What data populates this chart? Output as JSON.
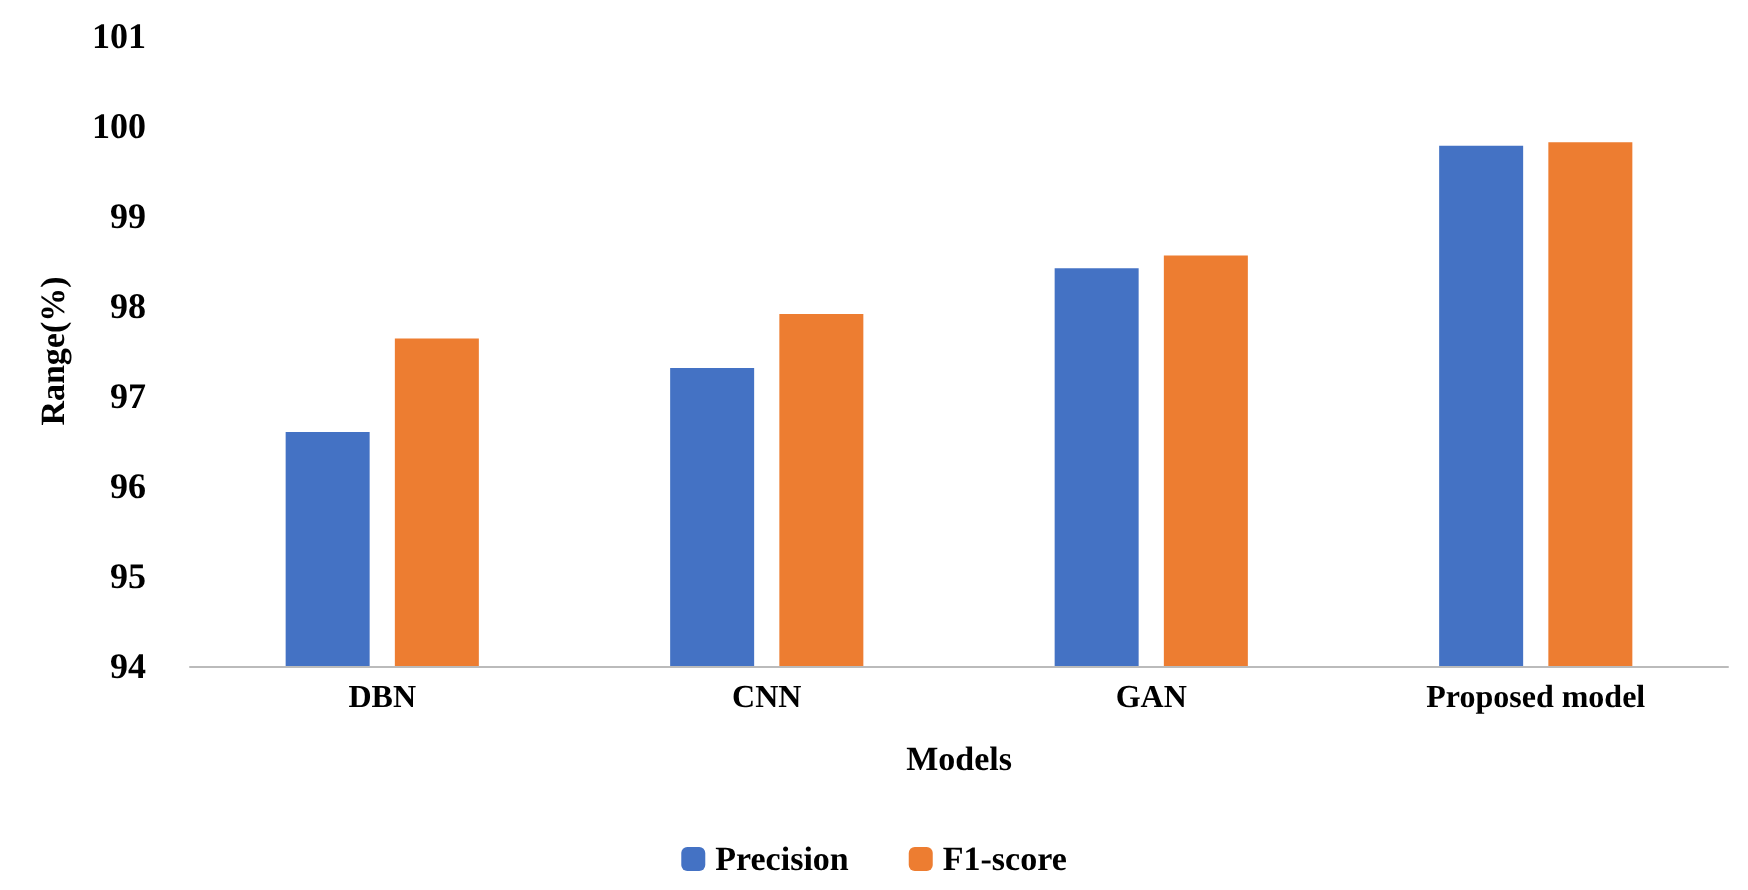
{
  "chart_data": {
    "type": "bar",
    "xlabel": "Models",
    "ylabel": "Range(%)",
    "categories": [
      "DBN",
      "CNN",
      "GAN",
      "Proposed model"
    ],
    "series": [
      {
        "name": "Precision",
        "color": "#4472c4",
        "values": [
          96.6,
          97.31,
          98.42,
          99.78
        ]
      },
      {
        "name": "F1-score",
        "color": "#ed7d31",
        "values": [
          97.64,
          97.91,
          98.56,
          99.82
        ]
      }
    ],
    "ylim": [
      94,
      101
    ],
    "yticks": [
      94,
      95,
      96,
      97,
      98,
      99,
      100,
      101
    ],
    "grid": false,
    "legend": "bottom"
  }
}
